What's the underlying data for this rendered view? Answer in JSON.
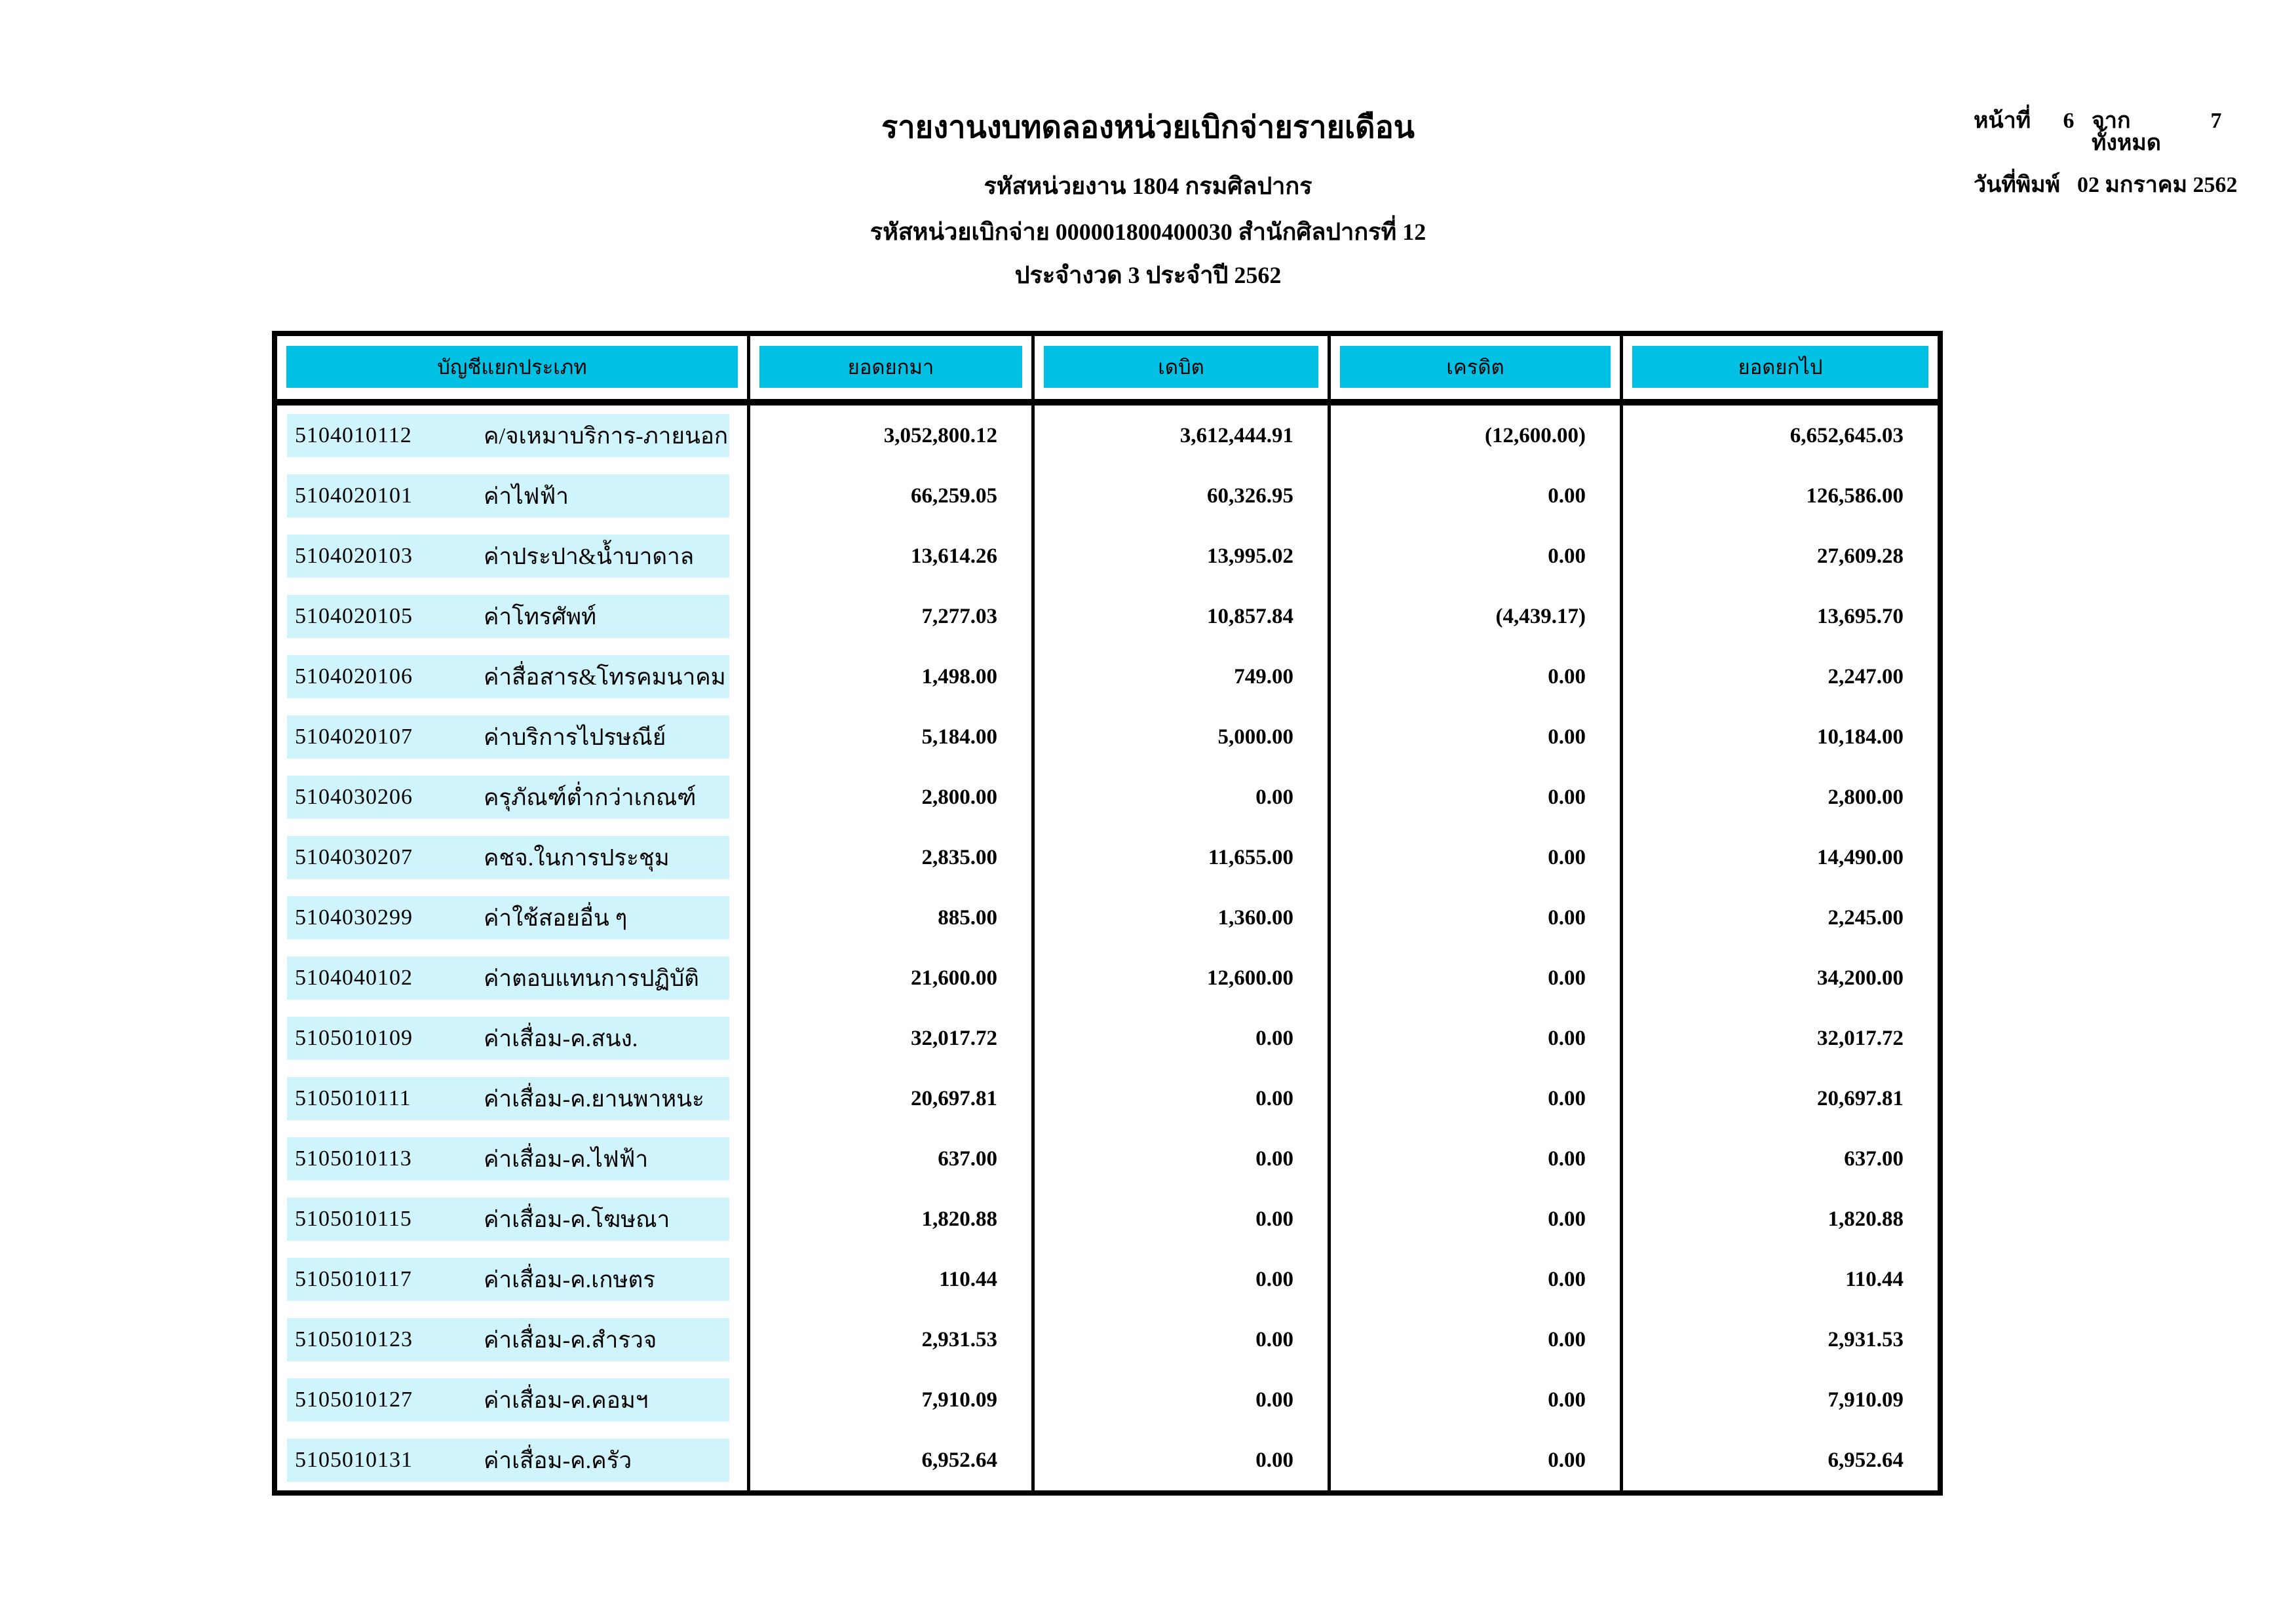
{
  "page": {
    "title": "รายงานงบทดลองหน่วยเบิกจ่ายรายเดือน",
    "subtitle1": "รหัสหน่วยงาน 1804 กรมศิลปากร",
    "subtitle2": "รหัสหน่วยเบิกจ่าย 000001800400030 สำนักศิลปากรที่ 12",
    "subtitle3": "ประจำงวด 3 ประจำปี 2562"
  },
  "print_info": {
    "page_label": "หน้าที่",
    "page_number": "6",
    "total_label": "จากทั้งหมด",
    "total_pages": "7",
    "date_label": "วันที่พิมพ์",
    "date_value": "02 มกราคม 2562"
  },
  "colors": {
    "header_bg": "#00C0E4",
    "row_bg": "#CFF4FB"
  },
  "table": {
    "columns": [
      "บัญชีแยกประเภท",
      "ยอดยกมา",
      "เดบิต",
      "เครดิต",
      "ยอดยกไป"
    ],
    "rows": [
      {
        "code": "5104010112",
        "name": "ค/จเหมาบริการ-ภายนอก",
        "brought_forward": "3,052,800.12",
        "debit": "3,612,444.91",
        "credit": "(12,600.00)",
        "carried_forward": "6,652,645.03"
      },
      {
        "code": "5104020101",
        "name": "ค่าไฟฟ้า",
        "brought_forward": "66,259.05",
        "debit": "60,326.95",
        "credit": "0.00",
        "carried_forward": "126,586.00"
      },
      {
        "code": "5104020103",
        "name": "ค่าประปา&น้ำบาดาล",
        "brought_forward": "13,614.26",
        "debit": "13,995.02",
        "credit": "0.00",
        "carried_forward": "27,609.28"
      },
      {
        "code": "5104020105",
        "name": "ค่าโทรศัพท์",
        "brought_forward": "7,277.03",
        "debit": "10,857.84",
        "credit": "(4,439.17)",
        "carried_forward": "13,695.70"
      },
      {
        "code": "5104020106",
        "name": "ค่าสื่อสาร&โทรคมนาคม",
        "brought_forward": "1,498.00",
        "debit": "749.00",
        "credit": "0.00",
        "carried_forward": "2,247.00"
      },
      {
        "code": "5104020107",
        "name": "ค่าบริการไปรษณีย์",
        "brought_forward": "5,184.00",
        "debit": "5,000.00",
        "credit": "0.00",
        "carried_forward": "10,184.00"
      },
      {
        "code": "5104030206",
        "name": "ครุภัณฑ์ต่ำกว่าเกณฑ์",
        "brought_forward": "2,800.00",
        "debit": "0.00",
        "credit": "0.00",
        "carried_forward": "2,800.00"
      },
      {
        "code": "5104030207",
        "name": "คชจ.ในการประชุม",
        "brought_forward": "2,835.00",
        "debit": "11,655.00",
        "credit": "0.00",
        "carried_forward": "14,490.00"
      },
      {
        "code": "5104030299",
        "name": "ค่าใช้สอยอื่น ๆ",
        "brought_forward": "885.00",
        "debit": "1,360.00",
        "credit": "0.00",
        "carried_forward": "2,245.00"
      },
      {
        "code": "5104040102",
        "name": "ค่าตอบแทนการปฏิบัติ",
        "brought_forward": "21,600.00",
        "debit": "12,600.00",
        "credit": "0.00",
        "carried_forward": "34,200.00"
      },
      {
        "code": "5105010109",
        "name": "ค่าเสื่อม-ค.สนง.",
        "brought_forward": "32,017.72",
        "debit": "0.00",
        "credit": "0.00",
        "carried_forward": "32,017.72"
      },
      {
        "code": "5105010111",
        "name": "ค่าเสื่อม-ค.ยานพาหนะ",
        "brought_forward": "20,697.81",
        "debit": "0.00",
        "credit": "0.00",
        "carried_forward": "20,697.81"
      },
      {
        "code": "5105010113",
        "name": "ค่าเสื่อม-ค.ไฟฟ้า",
        "brought_forward": "637.00",
        "debit": "0.00",
        "credit": "0.00",
        "carried_forward": "637.00"
      },
      {
        "code": "5105010115",
        "name": "ค่าเสื่อม-ค.โฆษณา",
        "brought_forward": "1,820.88",
        "debit": "0.00",
        "credit": "0.00",
        "carried_forward": "1,820.88"
      },
      {
        "code": "5105010117",
        "name": "ค่าเสื่อม-ค.เกษตร",
        "brought_forward": "110.44",
        "debit": "0.00",
        "credit": "0.00",
        "carried_forward": "110.44"
      },
      {
        "code": "5105010123",
        "name": "ค่าเสื่อม-ค.สำรวจ",
        "brought_forward": "2,931.53",
        "debit": "0.00",
        "credit": "0.00",
        "carried_forward": "2,931.53"
      },
      {
        "code": "5105010127",
        "name": "ค่าเสื่อม-ค.คอมฯ",
        "brought_forward": "7,910.09",
        "debit": "0.00",
        "credit": "0.00",
        "carried_forward": "7,910.09"
      },
      {
        "code": "5105010131",
        "name": "ค่าเสื่อม-ค.ครัว",
        "brought_forward": "6,952.64",
        "debit": "0.00",
        "credit": "0.00",
        "carried_forward": "6,952.64"
      }
    ]
  }
}
